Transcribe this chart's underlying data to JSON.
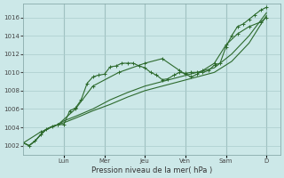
{
  "background_color": "#cce8e8",
  "grid_color": "#aacccc",
  "line_color": "#2d6a2d",
  "ylabel": "Pression niveau de la mer( hPa )",
  "ylim": [
    1001.0,
    1017.5
  ],
  "yticks": [
    1002,
    1004,
    1006,
    1008,
    1010,
    1012,
    1014,
    1016
  ],
  "day_labels": [
    "Lun",
    "Mer",
    "Jeu",
    "Ven",
    "Sam",
    "D"
  ],
  "day_positions": [
    2.33,
    4.67,
    7.0,
    9.33,
    11.67,
    14.0
  ],
  "xlim": [
    0.0,
    14.8
  ],
  "line1_x": [
    0.0,
    0.33,
    0.67,
    1.0,
    1.33,
    1.67,
    2.0,
    2.33,
    2.67,
    3.0,
    3.33,
    3.67,
    4.0,
    4.33,
    4.67,
    5.0,
    5.33,
    5.67,
    6.0,
    6.33,
    6.67,
    7.0,
    7.33,
    7.67,
    8.0,
    8.33,
    8.67,
    9.0,
    9.33,
    9.67,
    10.0,
    10.33,
    10.67,
    11.0,
    11.33,
    11.67,
    12.0,
    12.33,
    12.67,
    13.0,
    13.33,
    13.67,
    14.0
  ],
  "line1_y": [
    1002.3,
    1002.0,
    1002.5,
    1003.2,
    1003.8,
    1004.1,
    1004.3,
    1004.3,
    1005.8,
    1006.1,
    1007.0,
    1008.8,
    1009.5,
    1009.7,
    1009.8,
    1010.6,
    1010.7,
    1011.0,
    1011.0,
    1011.0,
    1010.7,
    1010.5,
    1010.0,
    1009.7,
    1009.2,
    1009.3,
    1009.7,
    1010.0,
    1009.9,
    1010.0,
    1010.0,
    1010.0,
    1010.2,
    1010.8,
    1011.0,
    1012.8,
    1014.0,
    1015.0,
    1015.3,
    1015.8,
    1016.3,
    1016.8,
    1017.1
  ],
  "line2_x": [
    0.0,
    0.33,
    0.67,
    1.0,
    1.33,
    1.67,
    2.0,
    2.33,
    3.0,
    4.0,
    5.0,
    6.0,
    7.0,
    8.0,
    9.0,
    10.0,
    11.0,
    12.0,
    13.0,
    14.0
  ],
  "line2_y": [
    1002.3,
    1002.0,
    1002.5,
    1003.2,
    1003.8,
    1004.1,
    1004.3,
    1004.5,
    1005.0,
    1005.8,
    1006.5,
    1007.3,
    1008.0,
    1008.5,
    1009.0,
    1009.5,
    1010.0,
    1011.2,
    1013.2,
    1016.2
  ],
  "line3_x": [
    0.0,
    0.33,
    0.67,
    1.0,
    1.33,
    1.67,
    2.0,
    2.33,
    3.0,
    4.0,
    5.0,
    6.0,
    7.0,
    8.0,
    9.0,
    10.0,
    11.0,
    12.0,
    13.0,
    14.0
  ],
  "line3_y": [
    1002.3,
    1002.0,
    1002.5,
    1003.2,
    1003.8,
    1004.1,
    1004.3,
    1004.7,
    1005.2,
    1006.0,
    1007.0,
    1007.8,
    1008.5,
    1009.0,
    1009.5,
    1010.0,
    1010.5,
    1012.0,
    1014.0,
    1016.5
  ],
  "line4_x": [
    0.0,
    1.0,
    2.0,
    3.0,
    4.0,
    5.5,
    7.0,
    8.0,
    9.0,
    9.33,
    9.67,
    10.0,
    10.33,
    11.0,
    11.67,
    12.33,
    13.0,
    13.67,
    14.0
  ],
  "line4_y": [
    1002.3,
    1003.5,
    1004.3,
    1006.0,
    1008.5,
    1010.0,
    1011.0,
    1011.5,
    1010.2,
    1009.8,
    1009.5,
    1009.8,
    1010.2,
    1011.0,
    1013.0,
    1014.2,
    1015.0,
    1015.5,
    1016.0
  ]
}
